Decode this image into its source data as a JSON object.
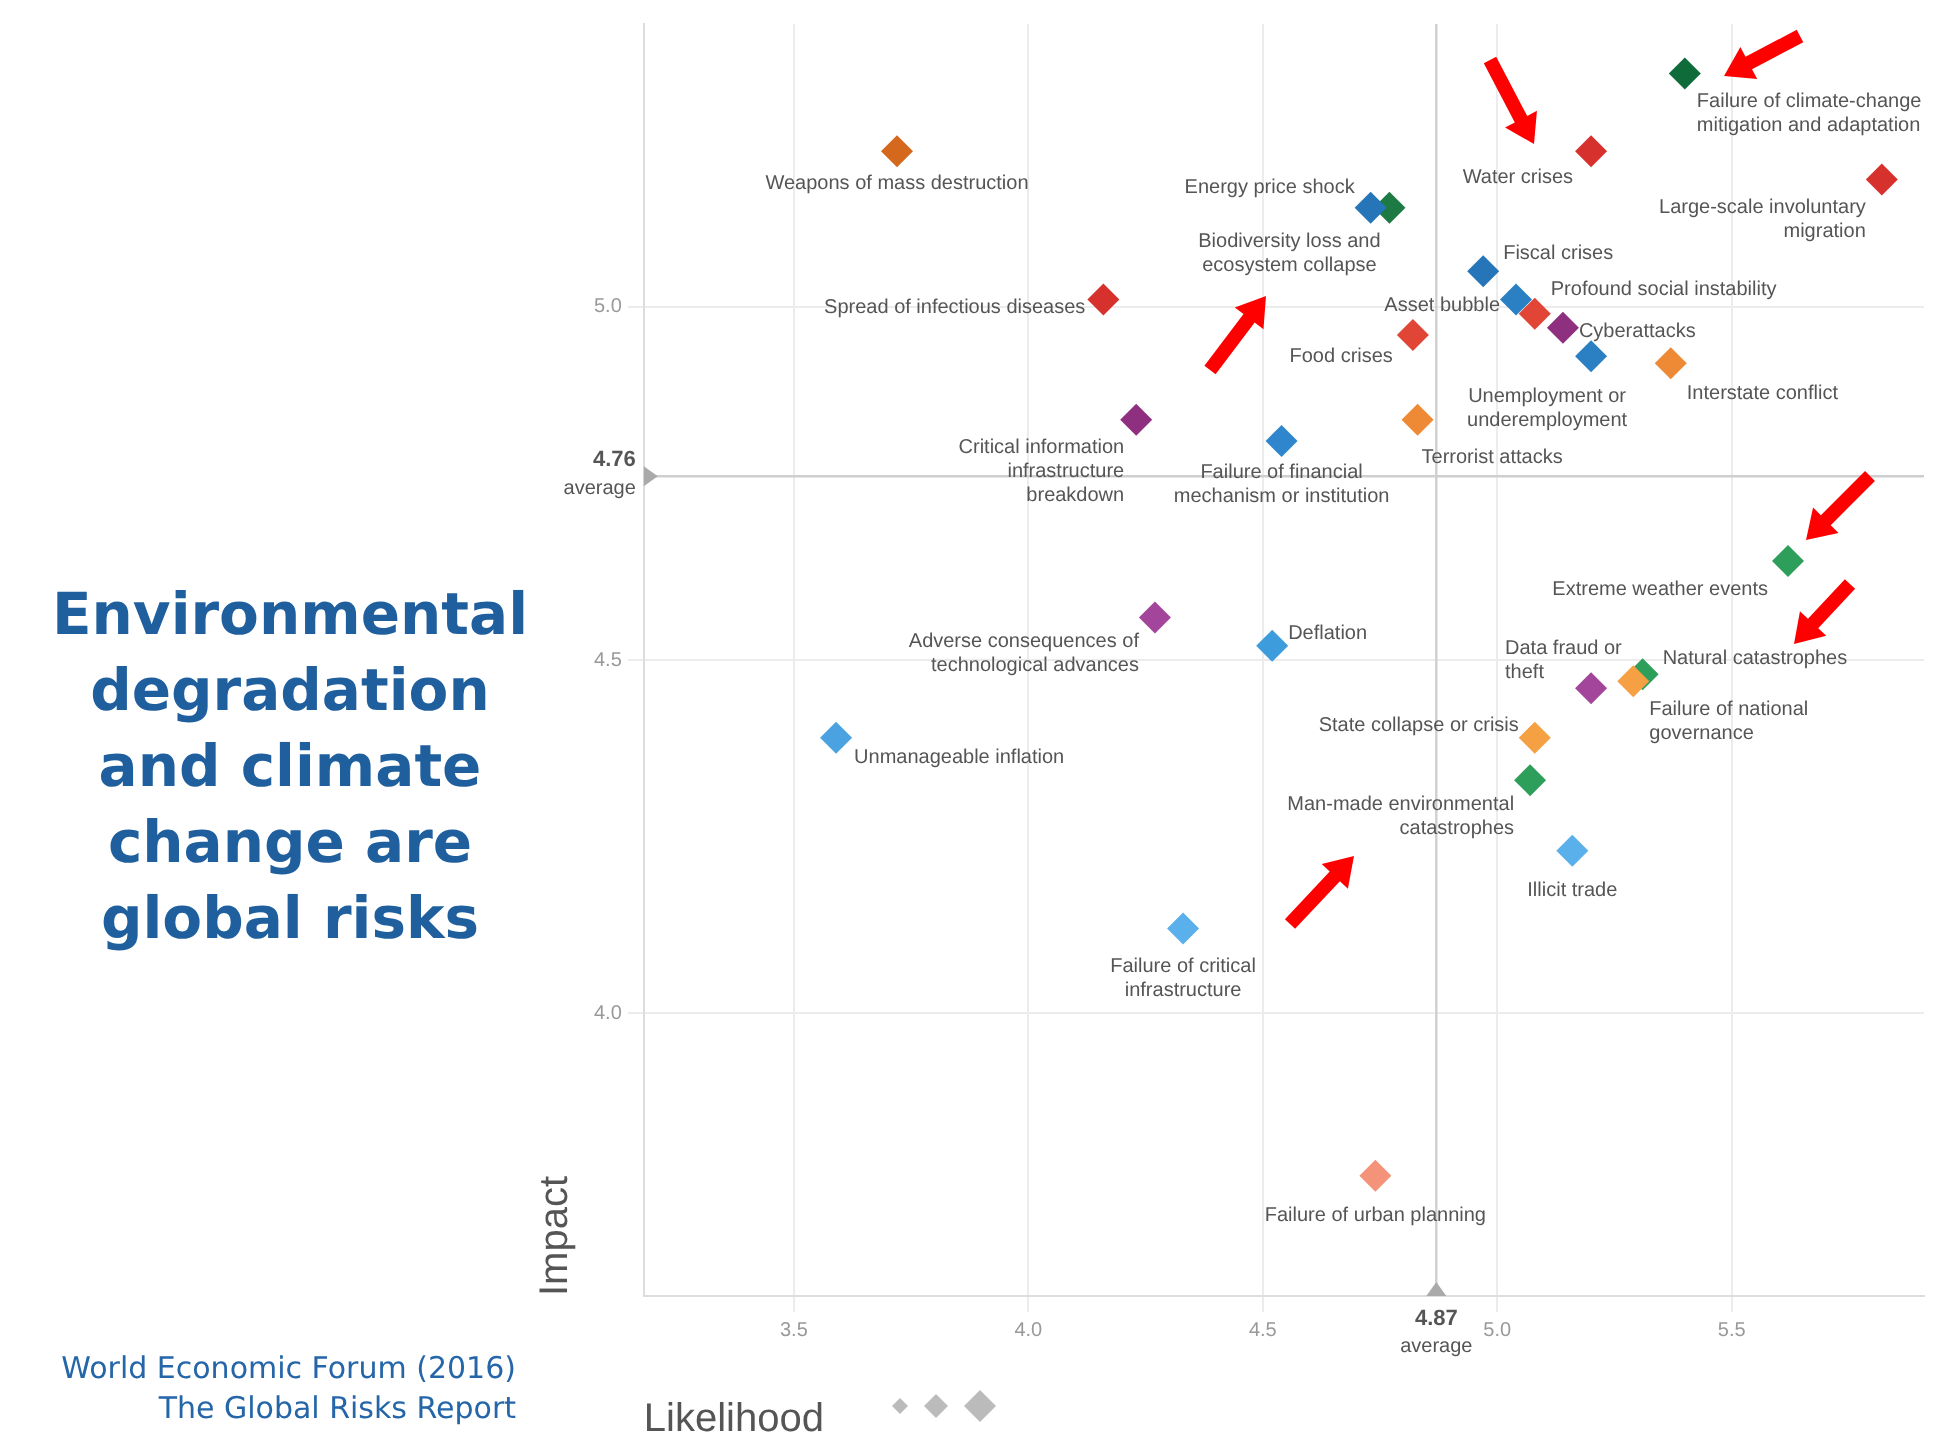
{
  "chart_data": {
    "type": "scatter",
    "title": "Environmental degradation and climate change are global risks",
    "xlabel": "Likelihood",
    "ylabel": "Impact",
    "annotations": [
      "World Economic Forum (2016) The Global Risks Report"
    ],
    "xlim": [
      3.18,
      5.91
    ],
    "ylim": [
      3.6,
      5.4
    ],
    "xticks": [
      3.5,
      {
        "value": 4,
        "label": "4.0"
      },
      4.5,
      {
        "value": 5,
        "label": "5.0"
      },
      5.5
    ],
    "yticks": [
      {
        "value": 4,
        "label": "4.0"
      },
      4.5,
      {
        "value": 5,
        "label": "5.0"
      }
    ],
    "grid": true,
    "legend": false,
    "marker": "diamond",
    "ref_lines": [
      {
        "axis": "x",
        "value": 4.87,
        "label": "4.87 average"
      },
      {
        "axis": "y",
        "value": 4.76,
        "label": "4.76 average"
      }
    ],
    "series": [
      {
        "name": "Weapons of mass destruction",
        "color": "#d4691e",
        "x": [
          3.72
        ],
        "values": [
          5.22
        ]
      },
      {
        "name": "Spread of infectious diseases",
        "color": "#d7312e",
        "x": [
          4.16
        ],
        "values": [
          5.01
        ]
      },
      {
        "name": "Critical information infrastructure breakdown",
        "color": "#8e2f7f",
        "x": [
          4.23
        ],
        "values": [
          4.84
        ]
      },
      {
        "name": "Adverse consequences of technological advances",
        "color": "#a3459a",
        "x": [
          4.27
        ],
        "values": [
          4.56
        ]
      },
      {
        "name": "Unmanageable inflation",
        "color": "#4aa3e0",
        "x": [
          3.59
        ],
        "values": [
          4.39
        ]
      },
      {
        "name": "Failure of critical infrastructure",
        "color": "#5ab0ea",
        "x": [
          4.33
        ],
        "values": [
          4.12
        ]
      },
      {
        "name": "Deflation",
        "color": "#3d9ddc",
        "x": [
          4.52
        ],
        "values": [
          4.52
        ]
      },
      {
        "name": "Failure of financial mechanism or institution",
        "color": "#2f86cc",
        "x": [
          4.54
        ],
        "values": [
          4.81
        ]
      },
      {
        "name": "Energy price shock",
        "color": "#2575b8",
        "x": [
          4.73
        ],
        "values": [
          5.14
        ]
      },
      {
        "name": "Biodiversity loss and ecosystem collapse",
        "color": "#1d7a45",
        "x": [
          4.77
        ],
        "values": [
          5.14
        ]
      },
      {
        "name": "Food crises",
        "color": "#e04536",
        "x": [
          4.82
        ],
        "values": [
          4.96
        ]
      },
      {
        "name": "Terrorist attacks",
        "color": "#ee8a35",
        "x": [
          4.83
        ],
        "values": [
          4.84
        ]
      },
      {
        "name": "Fiscal crises",
        "color": "#2575b8",
        "x": [
          4.97
        ],
        "values": [
          5.05
        ]
      },
      {
        "name": "Asset bubble",
        "color": "#2a80c2",
        "x": [
          5.04
        ],
        "values": [
          5.01
        ]
      },
      {
        "name": "Profound social instability",
        "color": "#e04536",
        "x": [
          5.08
        ],
        "values": [
          4.99
        ]
      },
      {
        "name": "Cyberattacks",
        "color": "#8e2f7f",
        "x": [
          5.14
        ],
        "values": [
          4.97
        ]
      },
      {
        "name": "Unemployment or underemployment",
        "color": "#2a80c2",
        "x": [
          5.2
        ],
        "values": [
          4.93
        ]
      },
      {
        "name": "Interstate conflict",
        "color": "#ee8a35",
        "x": [
          5.37
        ],
        "values": [
          4.92
        ]
      },
      {
        "name": "Water crises",
        "color": "#d7312e",
        "x": [
          5.2
        ],
        "values": [
          5.22
        ]
      },
      {
        "name": "Failure of climate-change mitigation and adaptation",
        "color": "#0f6b3a",
        "x": [
          5.4
        ],
        "values": [
          5.33
        ]
      },
      {
        "name": "Large-scale involuntary migration",
        "color": "#d7312e",
        "x": [
          5.82
        ],
        "values": [
          5.18
        ]
      },
      {
        "name": "Extreme weather events",
        "color": "#2e9e5b",
        "x": [
          5.62
        ],
        "values": [
          4.64
        ]
      },
      {
        "name": "Failure of national governance",
        "color": "#f5a042",
        "x": [
          5.29
        ],
        "values": [
          4.47
        ]
      },
      {
        "name": "Natural catastrophes",
        "color": "#2e9e5b",
        "x": [
          5.31
        ],
        "values": [
          4.48
        ]
      },
      {
        "name": "Data fraud or theft",
        "color": "#a3459a",
        "x": [
          5.2
        ],
        "values": [
          4.46
        ]
      },
      {
        "name": "State collapse or crisis",
        "color": "#f5a042",
        "x": [
          5.08
        ],
        "values": [
          4.39
        ]
      },
      {
        "name": "Man-made environmental catastrophes",
        "color": "#2e9e5b",
        "x": [
          5.07
        ],
        "values": [
          4.33
        ]
      },
      {
        "name": "Illicit trade",
        "color": "#5ab0ea",
        "x": [
          5.16
        ],
        "values": [
          4.23
        ]
      },
      {
        "name": "Failure of urban planning",
        "color": "#f5937a",
        "x": [
          4.74
        ],
        "values": [
          3.77
        ]
      }
    ]
  }
}
